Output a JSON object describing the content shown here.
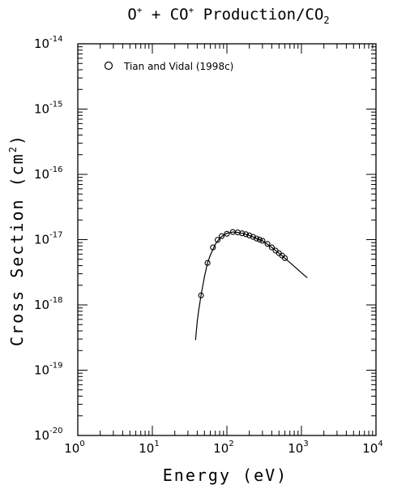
{
  "chart_data": {
    "type": "scatter",
    "title": {
      "parts": [
        {
          "text": "O",
          "sup": "+"
        },
        {
          "text": " + CO",
          "sup": "+"
        },
        {
          "text": " Production/CO",
          "sub": "2"
        }
      ]
    },
    "xlabel": "Energy (eV)",
    "ylabel": {
      "text": "Cross Section (cm",
      "sup": "2",
      "tail": ")"
    },
    "x_scale": "log",
    "y_scale": "log",
    "xlim": [
      1,
      10000
    ],
    "ylim": [
      1e-20,
      1e-14
    ],
    "x_ticks": [
      {
        "value": 1,
        "base": "10",
        "exp": "0"
      },
      {
        "value": 10,
        "base": "10",
        "exp": "1"
      },
      {
        "value": 100,
        "base": "10",
        "exp": "2"
      },
      {
        "value": 1000,
        "base": "10",
        "exp": "3"
      },
      {
        "value": 10000,
        "base": "10",
        "exp": "4"
      }
    ],
    "y_ticks": [
      {
        "value": 1e-14,
        "base": "10",
        "exp": "-14"
      },
      {
        "value": 1e-15,
        "base": "10",
        "exp": "-15"
      },
      {
        "value": 1e-16,
        "base": "10",
        "exp": "-16"
      },
      {
        "value": 1e-17,
        "base": "10",
        "exp": "-17"
      },
      {
        "value": 1e-18,
        "base": "10",
        "exp": "-18"
      },
      {
        "value": 1e-19,
        "base": "10",
        "exp": "-19"
      },
      {
        "value": 1e-20,
        "base": "10",
        "exp": "-20"
      }
    ],
    "grid": false,
    "legend_position": "top-left",
    "series": [
      {
        "name": "Tian and Vidal (1998c)",
        "kind": "markers",
        "marker": "open-circle",
        "x": [
          45,
          55,
          65,
          75,
          85,
          100,
          120,
          140,
          160,
          180,
          200,
          225,
          250,
          275,
          300,
          350,
          400,
          450,
          500,
          550,
          600
        ],
        "y": [
          1.4e-18,
          4.4e-18,
          7.6e-18,
          9.9e-18,
          1.13e-17,
          1.23e-17,
          1.31e-17,
          1.29e-17,
          1.25e-17,
          1.21e-17,
          1.16e-17,
          1.1e-17,
          1.04e-17,
          1e-17,
          9.6e-18,
          8.6e-18,
          7.6e-18,
          6.8e-18,
          6.2e-18,
          5.7e-18,
          5.2e-18
        ]
      },
      {
        "name": "",
        "kind": "line",
        "x": [
          38,
          40,
          42,
          45,
          50,
          55,
          60,
          70,
          80,
          90,
          100,
          120,
          140,
          160,
          200,
          250,
          300,
          400,
          500,
          600,
          800,
          1000,
          1200
        ],
        "y": [
          2.9e-19,
          5.6e-19,
          8.4e-19,
          1.4e-18,
          2.7e-18,
          4.4e-18,
          5.8e-18,
          8.5e-18,
          1.05e-17,
          1.17e-17,
          1.25e-17,
          1.31e-17,
          1.29e-17,
          1.25e-17,
          1.16e-17,
          1.04e-17,
          9.6e-18,
          7.6e-18,
          6.2e-18,
          5.2e-18,
          3.9e-18,
          3.1e-18,
          2.6e-18
        ]
      }
    ]
  }
}
